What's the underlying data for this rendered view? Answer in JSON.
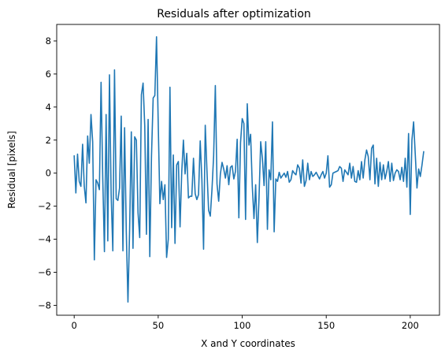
{
  "chart_data": {
    "type": "line",
    "title": "Residuals after optimization",
    "xlabel": "X and Y coordinates",
    "ylabel": "Residual [pixels]",
    "xlim": [
      -10.4,
      217.4
    ],
    "ylim": [
      -8.6,
      9.0
    ],
    "xticks": [
      0,
      50,
      100,
      150,
      200
    ],
    "yticks": [
      -8,
      -6,
      -4,
      -2,
      0,
      2,
      4,
      6,
      8
    ],
    "grid": false,
    "color": "#1f77b4",
    "series": [
      {
        "values": [
          1.05,
          -1.2,
          1.15,
          -0.5,
          -0.8,
          1.75,
          -0.8,
          -1.8,
          2.25,
          0.6,
          3.55,
          1.9,
          -5.25,
          -0.4,
          -0.6,
          -1.0,
          5.5,
          -0.3,
          -4.75,
          3.55,
          -4.1,
          5.95,
          -1.3,
          -4.7,
          6.25,
          -1.55,
          -1.65,
          -0.9,
          3.45,
          -4.7,
          2.75,
          -3.5,
          -7.8,
          -3.4,
          2.5,
          -4.55,
          2.2,
          2.0,
          -2.4,
          -3.9,
          4.75,
          5.45,
          2.85,
          -3.7,
          3.25,
          -5.05,
          1.0,
          4.55,
          4.7,
          8.25,
          3.1,
          -1.85,
          -0.5,
          -1.6,
          -0.7,
          -5.1,
          -4.0,
          5.2,
          -3.3,
          1.1,
          -4.25,
          0.5,
          0.7,
          -3.25,
          0.05,
          2.0,
          -0.05,
          1.2,
          -1.5,
          -1.4,
          -1.4,
          0.9,
          -1.25,
          -1.6,
          -1.3,
          1.95,
          -0.4,
          -4.6,
          2.9,
          0.2,
          -2.25,
          -2.6,
          -1.0,
          1.05,
          5.3,
          -0.65,
          -1.7,
          -0.05,
          0.65,
          0.25,
          -0.3,
          0.45,
          -0.7,
          0.35,
          0.45,
          -0.35,
          0.1,
          2.05,
          -2.7,
          1.85,
          3.3,
          3.0,
          -2.8,
          4.2,
          1.7,
          2.35,
          -0.8,
          -2.75,
          -0.7,
          -4.2,
          -1.5,
          1.9,
          0.9,
          -0.75,
          1.9,
          -3.4,
          0.2,
          -0.4,
          3.1,
          -3.55,
          -0.35,
          -0.5,
          0.05,
          -0.3,
          -0.15,
          0.0,
          -0.25,
          0.1,
          -0.55,
          -0.4,
          0.15,
          0.0,
          -0.1,
          0.5,
          0.3,
          -0.6,
          0.8,
          -0.8,
          -0.45,
          0.6,
          -0.4,
          0.1,
          -0.2,
          -0.1,
          0.05,
          -0.15,
          -0.35,
          -0.1,
          0.1,
          -0.3,
          0.0,
          1.05,
          -0.85,
          -0.7,
          0.0,
          0.05,
          0.1,
          0.15,
          0.4,
          0.3,
          -0.5,
          0.2,
          0.05,
          -0.1,
          0.6,
          -0.3,
          0.4,
          -0.5,
          -0.55,
          0.15,
          -0.4,
          0.7,
          -0.3,
          0.8,
          1.4,
          1.0,
          -0.4,
          1.5,
          1.7,
          -0.65,
          0.9,
          -0.8,
          0.65,
          -0.4,
          0.5,
          -0.35,
          0.1,
          0.7,
          -0.5,
          0.6,
          -0.45,
          0.0,
          0.2,
          0.1,
          -0.4,
          0.35,
          -0.5,
          0.9,
          -0.85,
          2.4,
          -2.5,
          2.0,
          3.1,
          1.1,
          -0.9,
          0.25,
          -0.2,
          0.5,
          1.3
        ]
      }
    ]
  }
}
